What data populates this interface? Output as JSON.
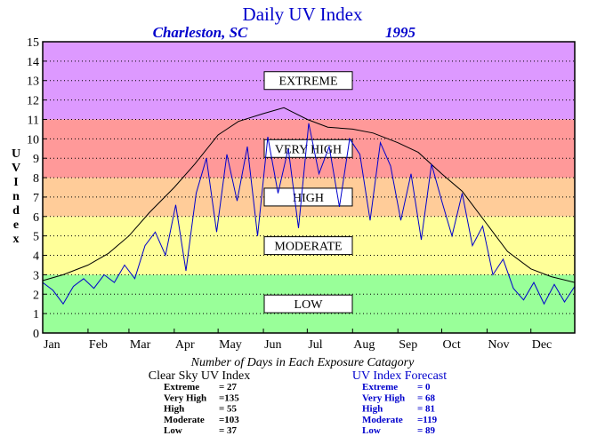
{
  "chart_data": {
    "type": "line",
    "title": "Daily UV Index",
    "location": "Charleston, SC",
    "year": "1995",
    "ylabel": "UV Index",
    "ylim": [
      0,
      15
    ],
    "yticks": [
      "0",
      "1",
      "2",
      "3",
      "4",
      "5",
      "6",
      "7",
      "8",
      "9",
      "10",
      "11",
      "12",
      "13",
      "14",
      "15"
    ],
    "months": [
      "Jan",
      "Feb",
      "Mar",
      "Apr",
      "May",
      "Jun",
      "Jul",
      "Aug",
      "Sep",
      "Oct",
      "Nov",
      "Dec"
    ],
    "bands": [
      {
        "label": "LOW",
        "from": 0,
        "to": 3,
        "color": "#99ff99"
      },
      {
        "label": "MODERATE",
        "from": 3,
        "to": 6,
        "color": "#ffff99"
      },
      {
        "label": "HIGH",
        "from": 6,
        "to": 8,
        "color": "#ffcc99"
      },
      {
        "label": "VERY HIGH",
        "from": 8,
        "to": 11,
        "color": "#ff9999"
      },
      {
        "label": "EXTREME",
        "from": 11,
        "to": 15,
        "color": "#dd99ff"
      }
    ],
    "series": [
      {
        "name": "Clear Sky UV Index",
        "color": "#000000",
        "x": [
          1,
          15,
          32,
          46,
          60,
          74,
          91,
          105,
          121,
          135,
          152,
          166,
          182,
          196,
          213,
          227,
          244,
          258,
          274,
          288,
          305,
          319,
          335,
          349,
          365
        ],
        "y": [
          2.7,
          3.0,
          3.5,
          4.1,
          5.0,
          6.2,
          7.5,
          8.7,
          10.2,
          10.9,
          11.3,
          11.6,
          11.0,
          10.6,
          10.5,
          10.3,
          9.8,
          9.3,
          8.2,
          7.3,
          5.6,
          4.2,
          3.3,
          2.9,
          2.6
        ]
      },
      {
        "name": "UV Index Forecast",
        "color": "#0000cc",
        "x": [
          1,
          8,
          15,
          22,
          29,
          36,
          43,
          50,
          57,
          64,
          71,
          78,
          85,
          92,
          99,
          106,
          113,
          120,
          127,
          134,
          141,
          148,
          155,
          162,
          169,
          176,
          183,
          190,
          197,
          204,
          211,
          218,
          225,
          232,
          239,
          246,
          253,
          260,
          267,
          274,
          281,
          288,
          295,
          302,
          309,
          316,
          323,
          330,
          337,
          344,
          351,
          358,
          365
        ],
        "y": [
          2.6,
          2.2,
          1.5,
          2.4,
          2.8,
          2.3,
          3.0,
          2.6,
          3.5,
          2.8,
          4.5,
          5.2,
          4.0,
          6.6,
          3.2,
          7.2,
          9.0,
          5.2,
          9.2,
          6.8,
          9.6,
          5.0,
          10.1,
          7.2,
          9.5,
          5.4,
          10.8,
          8.2,
          9.6,
          6.5,
          10.0,
          9.2,
          5.8,
          9.8,
          8.6,
          5.8,
          8.2,
          4.8,
          8.7,
          6.8,
          5.0,
          7.2,
          4.5,
          5.5,
          3.0,
          3.8,
          2.3,
          1.7,
          2.6,
          1.5,
          2.5,
          1.6,
          2.4
        ]
      }
    ]
  },
  "summary": {
    "heading": "Number of Days in Each Exposure Catagory",
    "clear": {
      "title": "Clear Sky UV Index",
      "rows": [
        {
          "label": "Extreme",
          "value": "= 27"
        },
        {
          "label": "Very High",
          "value": "=135"
        },
        {
          "label": "High",
          "value": "= 55"
        },
        {
          "label": "Moderate",
          "value": "=103"
        },
        {
          "label": "Low",
          "value": "= 37"
        }
      ]
    },
    "forecast": {
      "title": "UV Index Forecast",
      "rows": [
        {
          "label": "Extreme",
          "value": "= 0"
        },
        {
          "label": "Very High",
          "value": "= 68"
        },
        {
          "label": "High",
          "value": "= 81"
        },
        {
          "label": "Moderate",
          "value": "=119"
        },
        {
          "label": "Low",
          "value": "= 89"
        }
      ]
    }
  },
  "colors": {
    "title": "#0000cc",
    "clear_sky": "#000000",
    "forecast": "#0000cc"
  }
}
